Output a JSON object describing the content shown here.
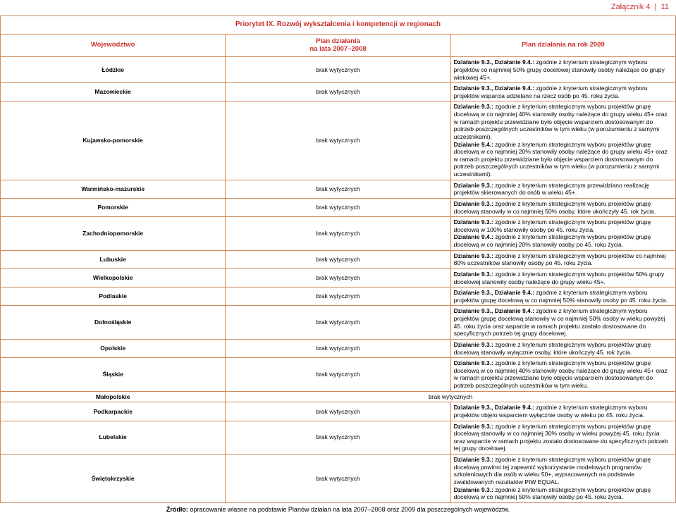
{
  "header": {
    "label": "Załącznik 4",
    "page": "11"
  },
  "table": {
    "title": "Priorytet IX. Rozwój wykształcenia i kompetencji w regionach",
    "col_headers": {
      "woj": "Województwo",
      "plan07": "Plan działania\nna lata 2007–2008",
      "plan09": "Plan działania na rok 2009"
    },
    "brak": "brak wytycznych",
    "rows": [
      {
        "woj": "Łódzkie",
        "plan07": "brak wytycznych",
        "plan09": "<strong>Działanie 9.3., Działanie 9.4.:</strong> zgodnie z kryterium strategicznym wyboru projektów co najmniej 50% grupy docelowej stanowiły osoby należące do grupy wiekowej 45+."
      },
      {
        "woj": "Mazowieckie",
        "plan07": "brak wytycznych",
        "plan09": "<strong>Działanie 9.3., Działanie 9.4.:</strong> zgodnie z kryterium strategicznym wyboru projektów wsparcia udzielano na rzecz osób po 45. roku życia."
      },
      {
        "woj": "Kujawsko-pomorskie",
        "plan07": "brak wytycznych",
        "plan09": "<strong>Działanie 9.3.:</strong> zgodnie z kryterium strategicznym wyboru projektów grupę docelową w co najmniej 40% stanowiły osoby należące do grupy wieku 45+ oraz w ramach projektu przewidziane było objęcie wsparciem dostosowanym do potrzeb poszczególnych uczestników w tym wieku (w porozumieniu z samymi uczestnikami).<br><strong>Działanie 9.4.:</strong> zgodnie z kryterium strategicznym wyboru projektów grupę docelową w co najmniej 20% stanowiły osoby należące do grupy wieku 45+ oraz w ramach projektu przewidziane było objęcie wsparciem dostosowanym do potrzeb poszczególnych uczestników w tym wieku (w porozumieniu z samymi uczestnikami)."
      },
      {
        "woj": "Warmińsko-mazurskie",
        "plan07": "brak wytycznych",
        "plan09": "<strong>Działanie 9.3.:</strong> zgodnie z kryterium strategicznym przewidziano realizację projektów skierowanych do osób w wieku 45+."
      },
      {
        "woj": "Pomorskie",
        "plan07": "brak wytycznych",
        "plan09": "<strong>Działanie 9.3.:</strong> zgodnie z kryterium strategicznym wyboru projektów grupę docelową stanowiły w co najmniej 50% osoby, które ukończyły 45. rok życia."
      },
      {
        "woj": "Zachodniopomorskie",
        "plan07": "brak wytycznych",
        "plan09": "<strong>Działanie 9.3.:</strong> zgodnie z kryterium strategicznym wyboru projektów grupę docelową w 100% stanowiły osoby po 45. roku życia.<br><strong>Działanie 9.4.:</strong> zgodnie z kryterium strategicznym wyboru projektów grupę docelową w co najmniej 20% stanowiły osoby po 45. roku życia."
      },
      {
        "woj": "Lubuskie",
        "plan07": "brak wytycznych",
        "plan09": "<strong>Działanie 9.3.:</strong> zgodnie z kryterium strategicznym wyboru projektów co najmniej 80% uczestników stanowiły osoby po 45. roku życia."
      },
      {
        "woj": "Wielkopolskie",
        "plan07": "brak wytycznych",
        "plan09": "<strong>Działanie 9.3.:</strong> zgodnie z kryterium strategicznym wyboru projektów 50% grupy docelowej stanowiły osoby należące do grupy wieku 45+."
      },
      {
        "woj": "Podlaskie",
        "plan07": "brak wytycznych",
        "plan09": "<strong>Działanie 9.3., Działanie 9.4.:</strong> zgodnie z kryterium strategicznym wyboru projektów grupę docelową w co najmniej 50% stanowiły osoby po 45. roku życia."
      },
      {
        "woj": "Dolnośląskie",
        "plan07": "brak wytycznych",
        "plan09": "<strong>Działanie 9.3., Działanie 9.4.:</strong> zgodnie z kryterium strategicznym wyboru projektów grupę docelową stanowiły w co najmniej 50% osoby w wieku powyżej 45. roku życia oraz wsparcie w ramach projektu zostało dostosowane do specyficznych potrzeb tej grupy docelowej."
      },
      {
        "woj": "Opolskie",
        "plan07": "brak wytycznych",
        "plan09": "<strong>Działanie 9.3.:</strong> zgodnie z kryterium strategicznym wyboru projektów grupę docelową stanowiły wyłącznie osoby, które ukończyły 45. rok życia."
      },
      {
        "woj": "Śląskie",
        "plan07": "brak wytycznych",
        "plan09": "<strong>Działanie 9.3.:</strong> zgodnie z kryterium strategicznym wyboru projektów grupę docelową w co najmniej 40% stanowiły osoby należące do grupy wieku 45+ oraz w ramach projektu przewidziane było objęcie wsparciem dostosowanym do potrzeb poszczególnych uczestników w tym wieku."
      },
      {
        "woj": "Małopolskie",
        "fullbrak": true
      },
      {
        "woj": "Podkarpackie",
        "plan07": "brak wytycznych",
        "plan09": "<strong>Działanie 9.3., Działanie 9.4.:</strong> zgodnie z kryterium strategicznym wyboru projektów objęto wsparciem wyłącznie osoby w wieku po 45. roku życia."
      },
      {
        "woj": "Lubelskie",
        "plan07": "brak wytycznych",
        "plan09": "<strong>Działanie 9.3.:</strong> zgodnie z kryterium strategicznym wyboru projektów grupę docelową stanowiły w co najmniej 30% osoby w wieku powyżej 45. roku życia oraz wsparcie w ramach projektu zostało dostosowane do specyficznych potrzeb tej grupy docelowej."
      },
      {
        "woj": "Świętokrzyskie",
        "plan07": "brak wytycznych",
        "plan09": "<strong>Działanie 9.3.:</strong> zgodnie z kryterium strategicznym wyboru projektów grupę docelową powinni tej zapewnić wykorzystanie modelowych programów szkoleniowych dla osób w wieku 50+, wypracowanych na podstawie zwalidowanych rezultatów PIW EQUAL.<br><strong>Działanie 9.3.:</strong> zgodnie z kryterium strategicznym wyboru projektów grupę docelową w co najmniej 50% stanowiły osoby po 45. roku życia."
      }
    ]
  },
  "source": "<strong>Źródło:</strong> opracowanie własne na podstawie Planów działań na lata 2007–2008 oraz 2009 dla poszczególnych województw.",
  "colors": {
    "border": "#d08a5a",
    "header_text": "#c9302c"
  }
}
